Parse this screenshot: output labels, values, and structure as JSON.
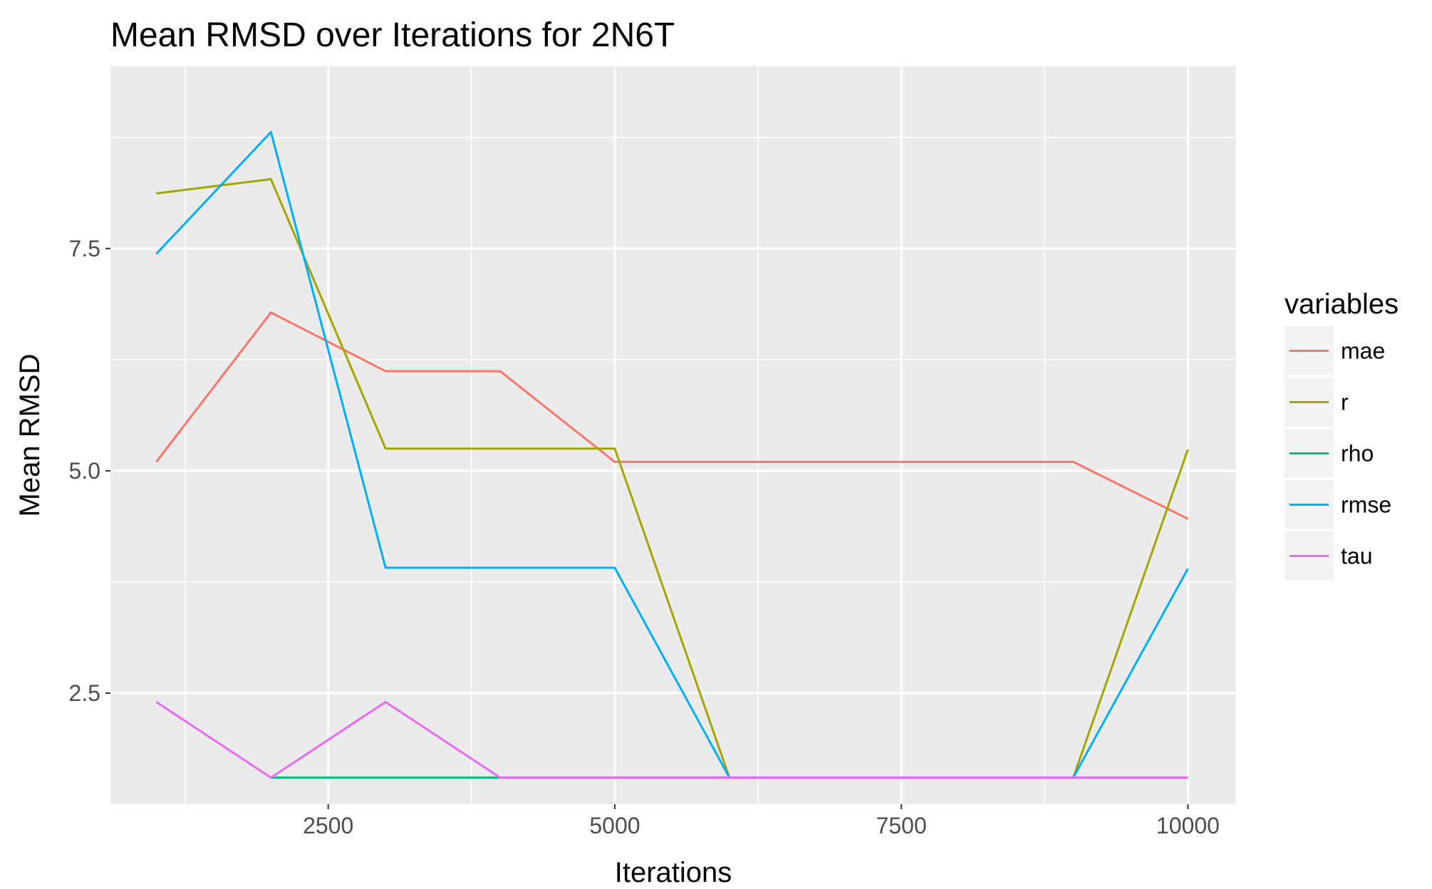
{
  "chart_data": {
    "type": "line",
    "title": "Mean RMSD over Iterations for 2N6T",
    "xlabel": "Iterations",
    "ylabel": "Mean RMSD",
    "xlim": [
      600,
      10420
    ],
    "ylim": [
      1.25,
      9.55
    ],
    "x_ticks": [
      2500,
      5000,
      7500,
      10000
    ],
    "x_tick_labels": [
      "2500",
      "5000",
      "7500",
      "10000"
    ],
    "y_ticks": [
      2.5,
      5.0,
      7.5
    ],
    "y_tick_labels": [
      "2.5",
      "5.0",
      "7.5"
    ],
    "grid": true,
    "legend_position": "right",
    "legend_title": "variables",
    "x": [
      1000,
      2000,
      3000,
      4000,
      5000,
      6000,
      9000,
      10000
    ],
    "series": [
      {
        "name": "mae",
        "color": "#F8766D",
        "values": [
          5.1,
          6.78,
          6.12,
          6.12,
          5.1,
          5.1,
          5.1,
          4.46
        ]
      },
      {
        "name": "r",
        "color": "#A3A500",
        "values": [
          8.12,
          8.28,
          5.25,
          5.25,
          5.25,
          1.55,
          1.55,
          5.24
        ]
      },
      {
        "name": "rho",
        "color": "#00BF7D",
        "values": [
          null,
          1.55,
          1.55,
          1.55,
          1.55,
          1.55,
          1.55,
          1.55
        ]
      },
      {
        "name": "rmse",
        "color": "#00B0F6",
        "values": [
          7.44,
          8.81,
          3.91,
          3.91,
          3.91,
          1.55,
          1.55,
          3.9
        ]
      },
      {
        "name": "tau",
        "color": "#E76BF3",
        "values": [
          2.4,
          1.55,
          2.4,
          1.55,
          1.55,
          1.55,
          1.55,
          1.55
        ]
      }
    ]
  }
}
